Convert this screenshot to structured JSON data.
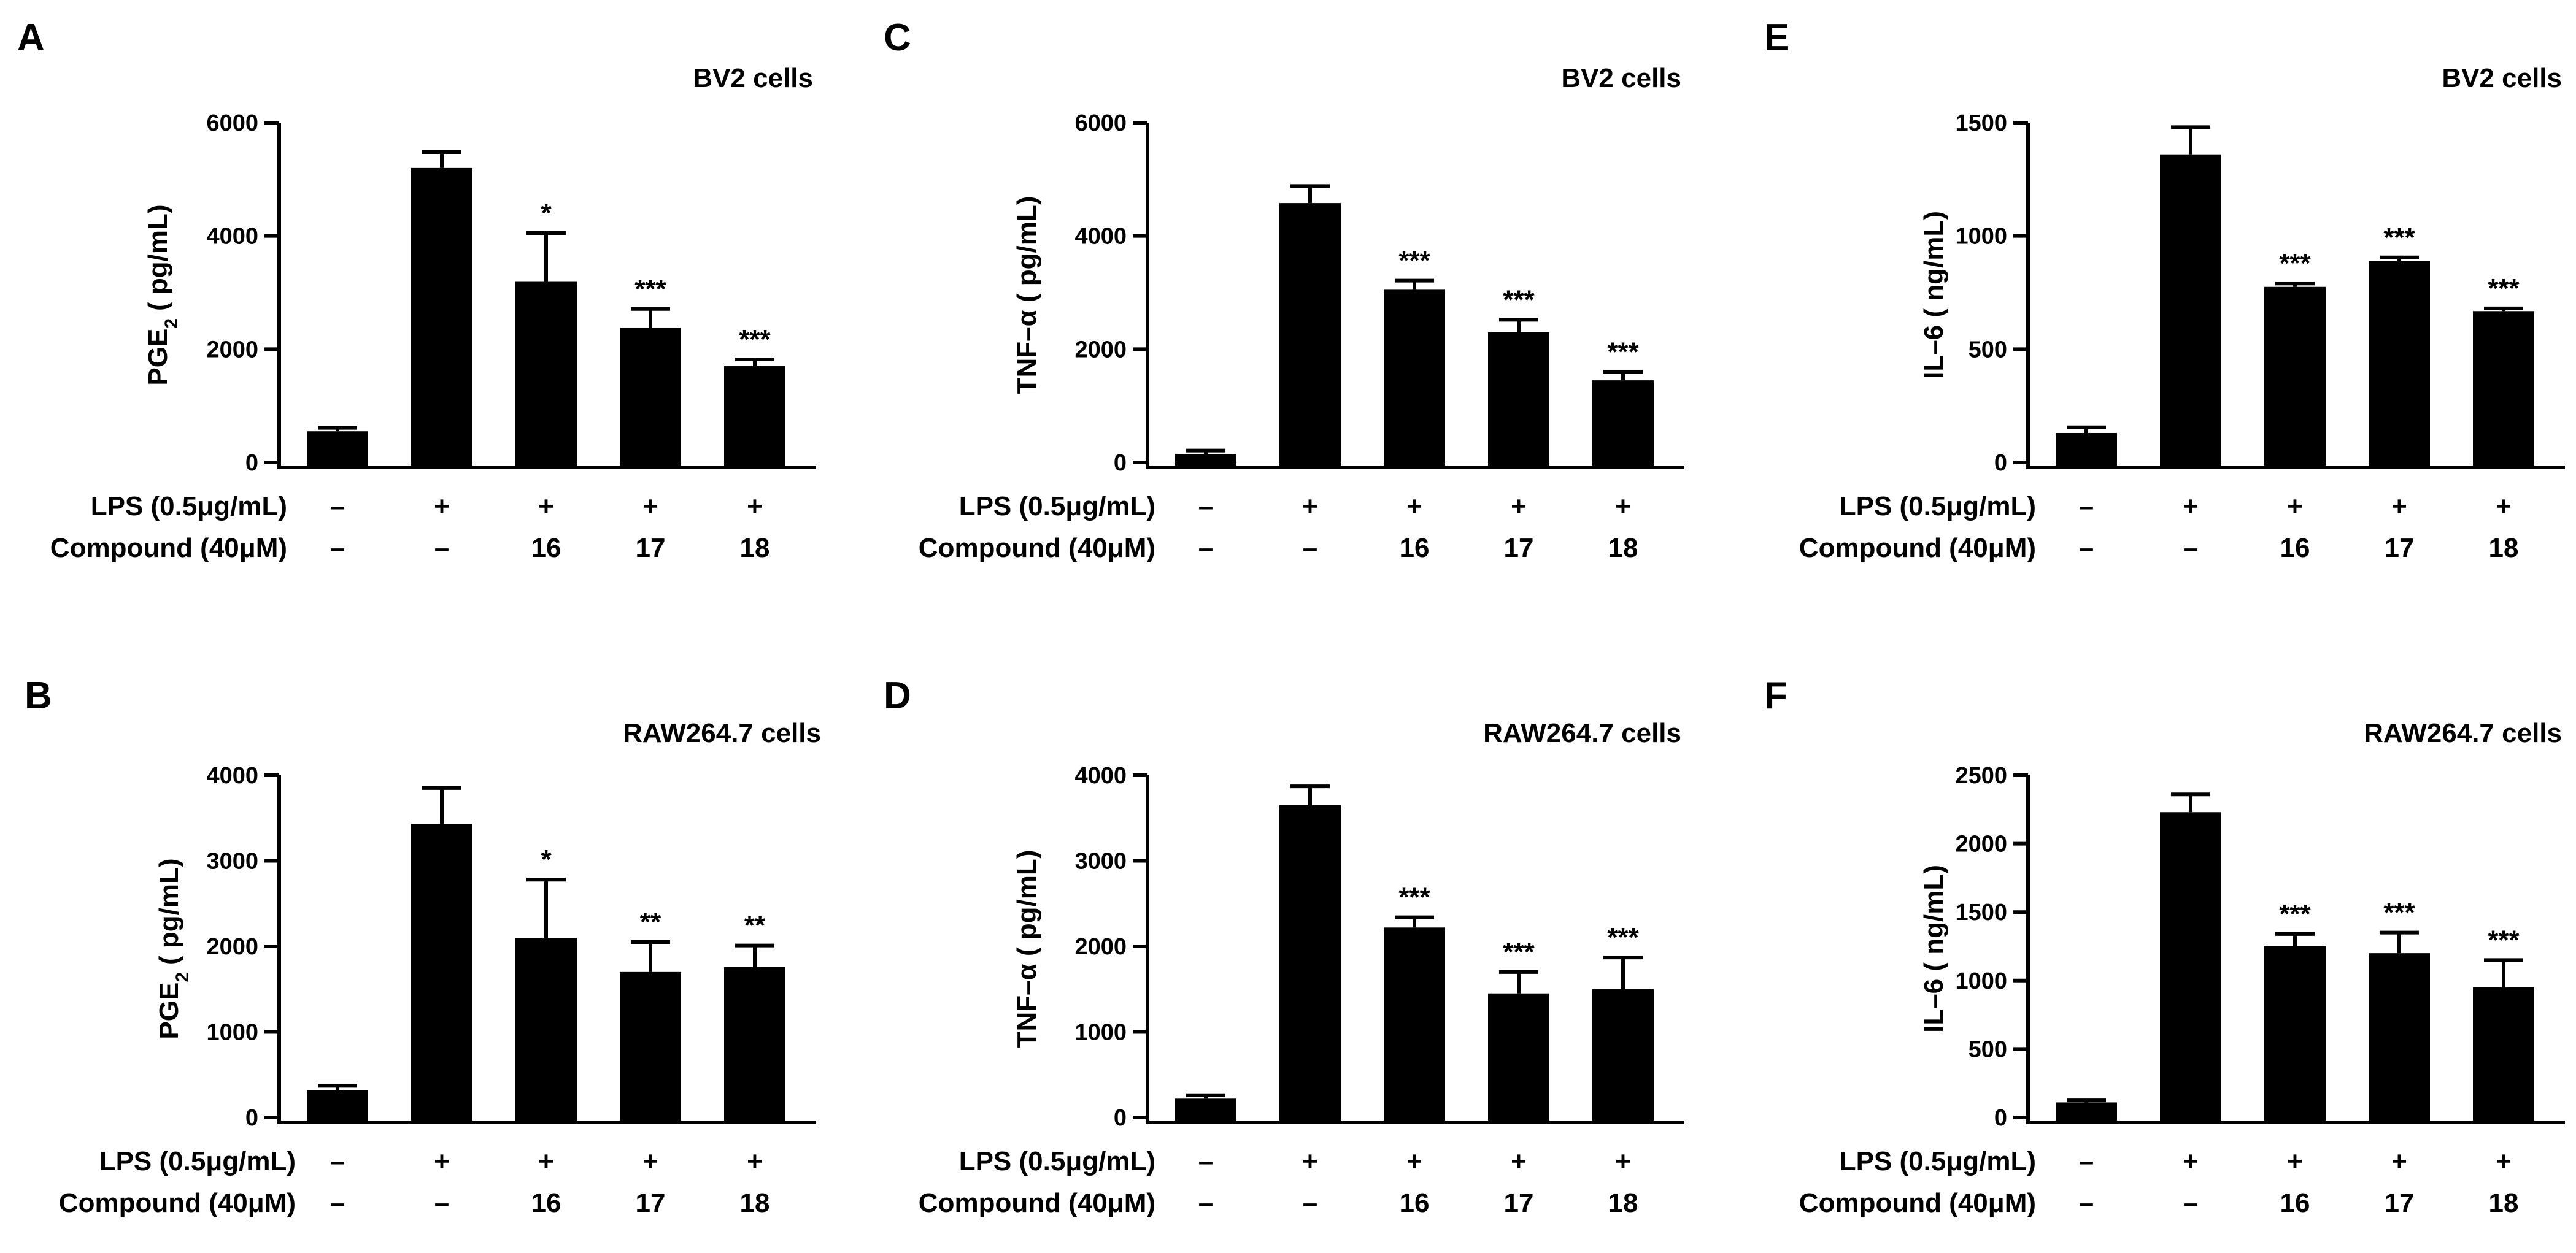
{
  "colors": {
    "bar": "#000000",
    "background": "#ffffff"
  },
  "chart_data": [
    {
      "id": "A",
      "type": "bar",
      "title": "BV2 cells",
      "ylabel_main": "PGE",
      "ylabel_sub": "2",
      "ylabel_suffix": "( pg/mL)",
      "ylim": [
        0,
        6000
      ],
      "yticks": [
        0,
        2000,
        4000,
        6000
      ],
      "values": [
        550,
        5200,
        3200,
        2380,
        1700
      ],
      "errors": [
        60,
        280,
        850,
        330,
        120
      ],
      "significance": [
        "",
        "",
        "*",
        "***",
        "***"
      ],
      "row1_label": "LPS (0.5μg/mL)",
      "row1": [
        "–",
        "+",
        "+",
        "+",
        "+"
      ],
      "row2_label": "Compound (40μM)",
      "row2": [
        "–",
        "–",
        "16",
        "17",
        "18"
      ]
    },
    {
      "id": "C",
      "type": "bar",
      "title": "BV2 cells",
      "ylabel_main": "TNF–α ( pg/mL)",
      "ylabel_sub": "",
      "ylabel_suffix": "",
      "ylim": [
        0,
        6000
      ],
      "yticks": [
        0,
        2000,
        4000,
        6000
      ],
      "values": [
        150,
        4580,
        3050,
        2300,
        1450
      ],
      "errors": [
        60,
        300,
        160,
        220,
        150
      ],
      "significance": [
        "",
        "",
        "***",
        "***",
        "***"
      ],
      "row1_label": "LPS (0.5μg/mL)",
      "row1": [
        "–",
        "+",
        "+",
        "+",
        "+"
      ],
      "row2_label": "Compound (40μM)",
      "row2": [
        "–",
        "–",
        "16",
        "17",
        "18"
      ]
    },
    {
      "id": "E",
      "type": "bar",
      "title": "BV2 cells",
      "ylabel_main": "IL–6 ( ng/mL)",
      "ylabel_sub": "",
      "ylabel_suffix": "",
      "ylim": [
        0,
        1500
      ],
      "yticks": [
        0,
        500,
        1000,
        1500
      ],
      "values": [
        130,
        1360,
        775,
        890,
        668
      ],
      "errors": [
        25,
        120,
        15,
        15,
        12
      ],
      "significance": [
        "",
        "",
        "***",
        "***",
        "***"
      ],
      "row1_label": "LPS (0.5μg/mL)",
      "row1": [
        "–",
        "+",
        "+",
        "+",
        "+"
      ],
      "row2_label": "Compound (40μM)",
      "row2": [
        "–",
        "–",
        "16",
        "17",
        "18"
      ]
    },
    {
      "id": "B",
      "type": "bar",
      "title": "RAW264.7 cells",
      "ylabel_main": "PGE",
      "ylabel_sub": "2",
      "ylabel_suffix": "( pg/mL)",
      "ylim": [
        0,
        4000
      ],
      "yticks": [
        0,
        1000,
        2000,
        3000,
        4000
      ],
      "values": [
        320,
        3430,
        2100,
        1700,
        1760
      ],
      "errors": [
        50,
        420,
        680,
        350,
        250
      ],
      "significance": [
        "",
        "",
        "*",
        "**",
        "**"
      ],
      "row1_label": "LPS (0.5μg/mL)",
      "row1": [
        "–",
        "+",
        "+",
        "+",
        "+"
      ],
      "row2_label": "Compound (40μM)",
      "row2": [
        "–",
        "–",
        "16",
        "17",
        "18"
      ]
    },
    {
      "id": "D",
      "type": "bar",
      "title": "RAW264.7 cells",
      "ylabel_main": "TNF–α ( pg/mL)",
      "ylabel_sub": "",
      "ylabel_suffix": "",
      "ylim": [
        0,
        4000
      ],
      "yticks": [
        0,
        1000,
        2000,
        3000,
        4000
      ],
      "values": [
        220,
        3650,
        2220,
        1450,
        1500
      ],
      "errors": [
        40,
        220,
        120,
        250,
        370
      ],
      "significance": [
        "",
        "",
        "***",
        "***",
        "***"
      ],
      "row1_label": "LPS (0.5μg/mL)",
      "row1": [
        "–",
        "+",
        "+",
        "+",
        "+"
      ],
      "row2_label": "Compound (40μM)",
      "row2": [
        "–",
        "–",
        "16",
        "17",
        "18"
      ]
    },
    {
      "id": "F",
      "type": "bar",
      "title": "RAW264.7 cells",
      "ylabel_main": "IL–6 ( ng/mL)",
      "ylabel_sub": "",
      "ylabel_suffix": "",
      "ylim": [
        0,
        2500
      ],
      "yticks": [
        0,
        500,
        1000,
        1500,
        2000,
        2500
      ],
      "values": [
        110,
        2230,
        1250,
        1200,
        950
      ],
      "errors": [
        15,
        130,
        90,
        150,
        200
      ],
      "significance": [
        "",
        "",
        "***",
        "***",
        "***"
      ],
      "row1_label": "LPS (0.5μg/mL)",
      "row1": [
        "–",
        "+",
        "+",
        "+",
        "+"
      ],
      "row2_label": "Compound (40μM)",
      "row2": [
        "–",
        "–",
        "16",
        "17",
        "18"
      ]
    }
  ]
}
